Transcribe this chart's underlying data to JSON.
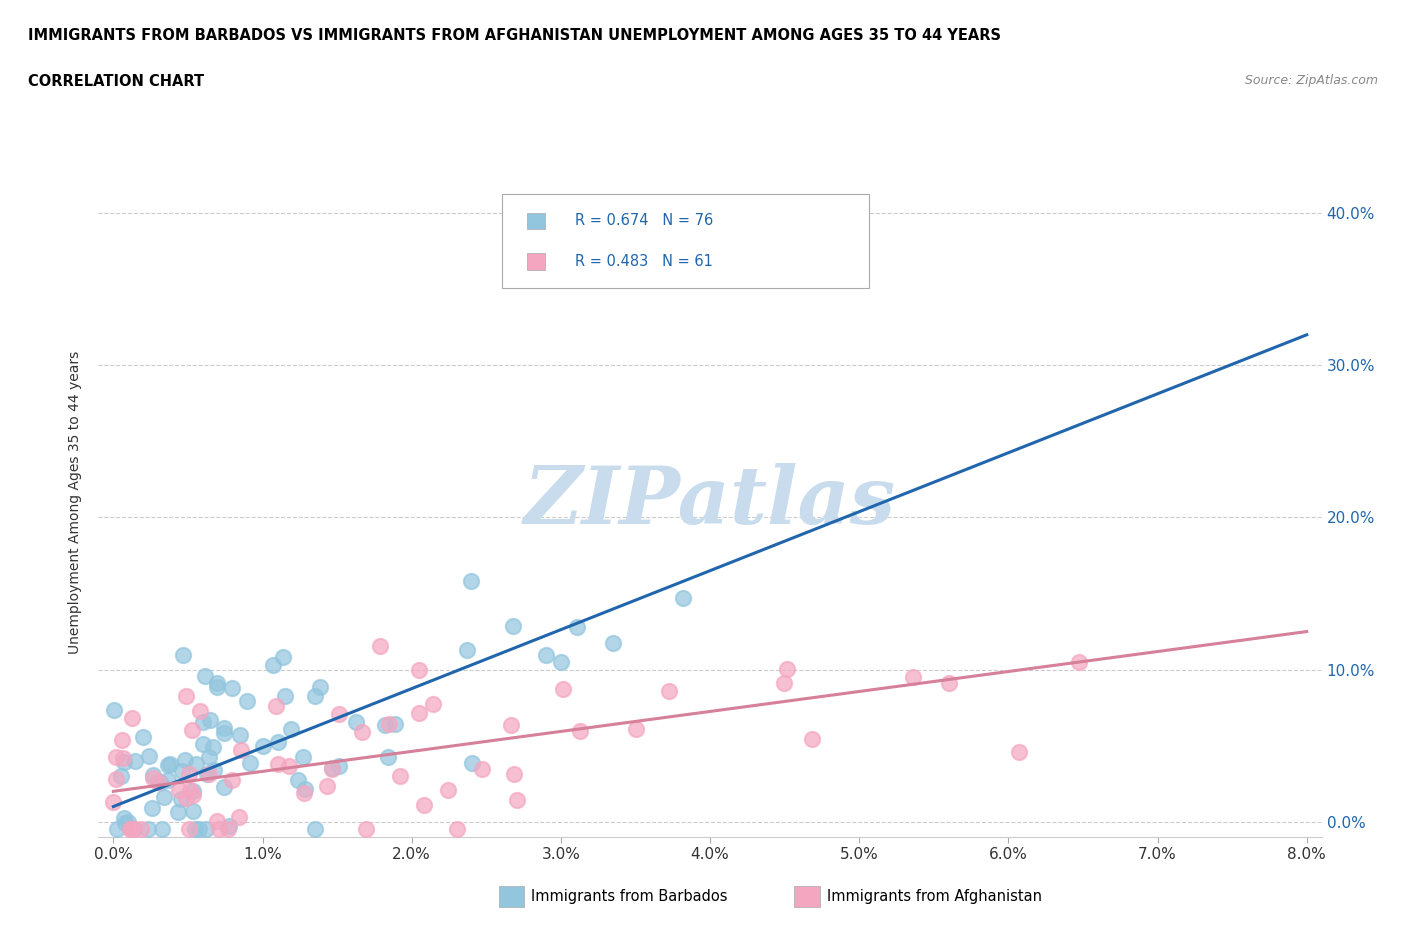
{
  "title_line1": "IMMIGRANTS FROM BARBADOS VS IMMIGRANTS FROM AFGHANISTAN UNEMPLOYMENT AMONG AGES 35 TO 44 YEARS",
  "title_line2": "CORRELATION CHART",
  "source_text": "Source: ZipAtlas.com",
  "ylabel": "Unemployment Among Ages 35 to 44 years",
  "xlim": [
    0.0,
    0.08
  ],
  "ylim": [
    0.0,
    0.42
  ],
  "xtick_vals": [
    0.0,
    0.01,
    0.02,
    0.03,
    0.04,
    0.05,
    0.06,
    0.07,
    0.08
  ],
  "ytick_vals": [
    0.0,
    0.1,
    0.2,
    0.3,
    0.4
  ],
  "barbados_color": "#92c5de",
  "afghanistan_color": "#f4a6c0",
  "barbados_R": 0.674,
  "barbados_N": 76,
  "afghanistan_R": 0.483,
  "afghanistan_N": 61,
  "legend_R_color": "#2166ac",
  "watermark_color": "#c8dced",
  "trendline_barbados_color": "#2166ac",
  "trendline_afghanistan_color": "#d6809a",
  "trendline_b_x0": 0.0,
  "trendline_b_y0": 0.01,
  "trendline_b_x1": 0.08,
  "trendline_b_y1": 0.32,
  "trendline_a_x0": 0.0,
  "trendline_a_y0": 0.02,
  "trendline_a_x1": 0.08,
  "trendline_a_y1": 0.125
}
